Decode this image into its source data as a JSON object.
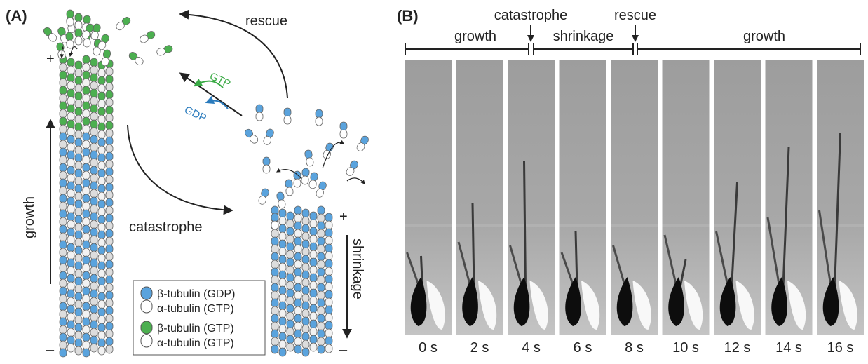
{
  "panel_a": {
    "label": "(A)",
    "rescue": "rescue",
    "catastrophe": "catastrophe",
    "growth": "growth",
    "shrinkage": "shrinkage",
    "gtp": "GTP",
    "gdp": "GDP",
    "plus_left": "+",
    "minus_left": "–",
    "plus_right": "+",
    "minus_right": "–",
    "legend": [
      "β-tubulin (GDP)",
      "α-tubulin (GTP)",
      "β-tubulin (GTP)",
      "α-tubulin (GTP)"
    ]
  },
  "panel_b": {
    "label": "(B)",
    "phases": [
      "growth",
      "shrinkage",
      "growth"
    ],
    "events": [
      "catastrophe",
      "rescue"
    ],
    "times": [
      "0 s",
      "2 s",
      "4 s",
      "6 s",
      "8 s",
      "10 s",
      "12 s",
      "14 s",
      "16 s"
    ]
  }
}
